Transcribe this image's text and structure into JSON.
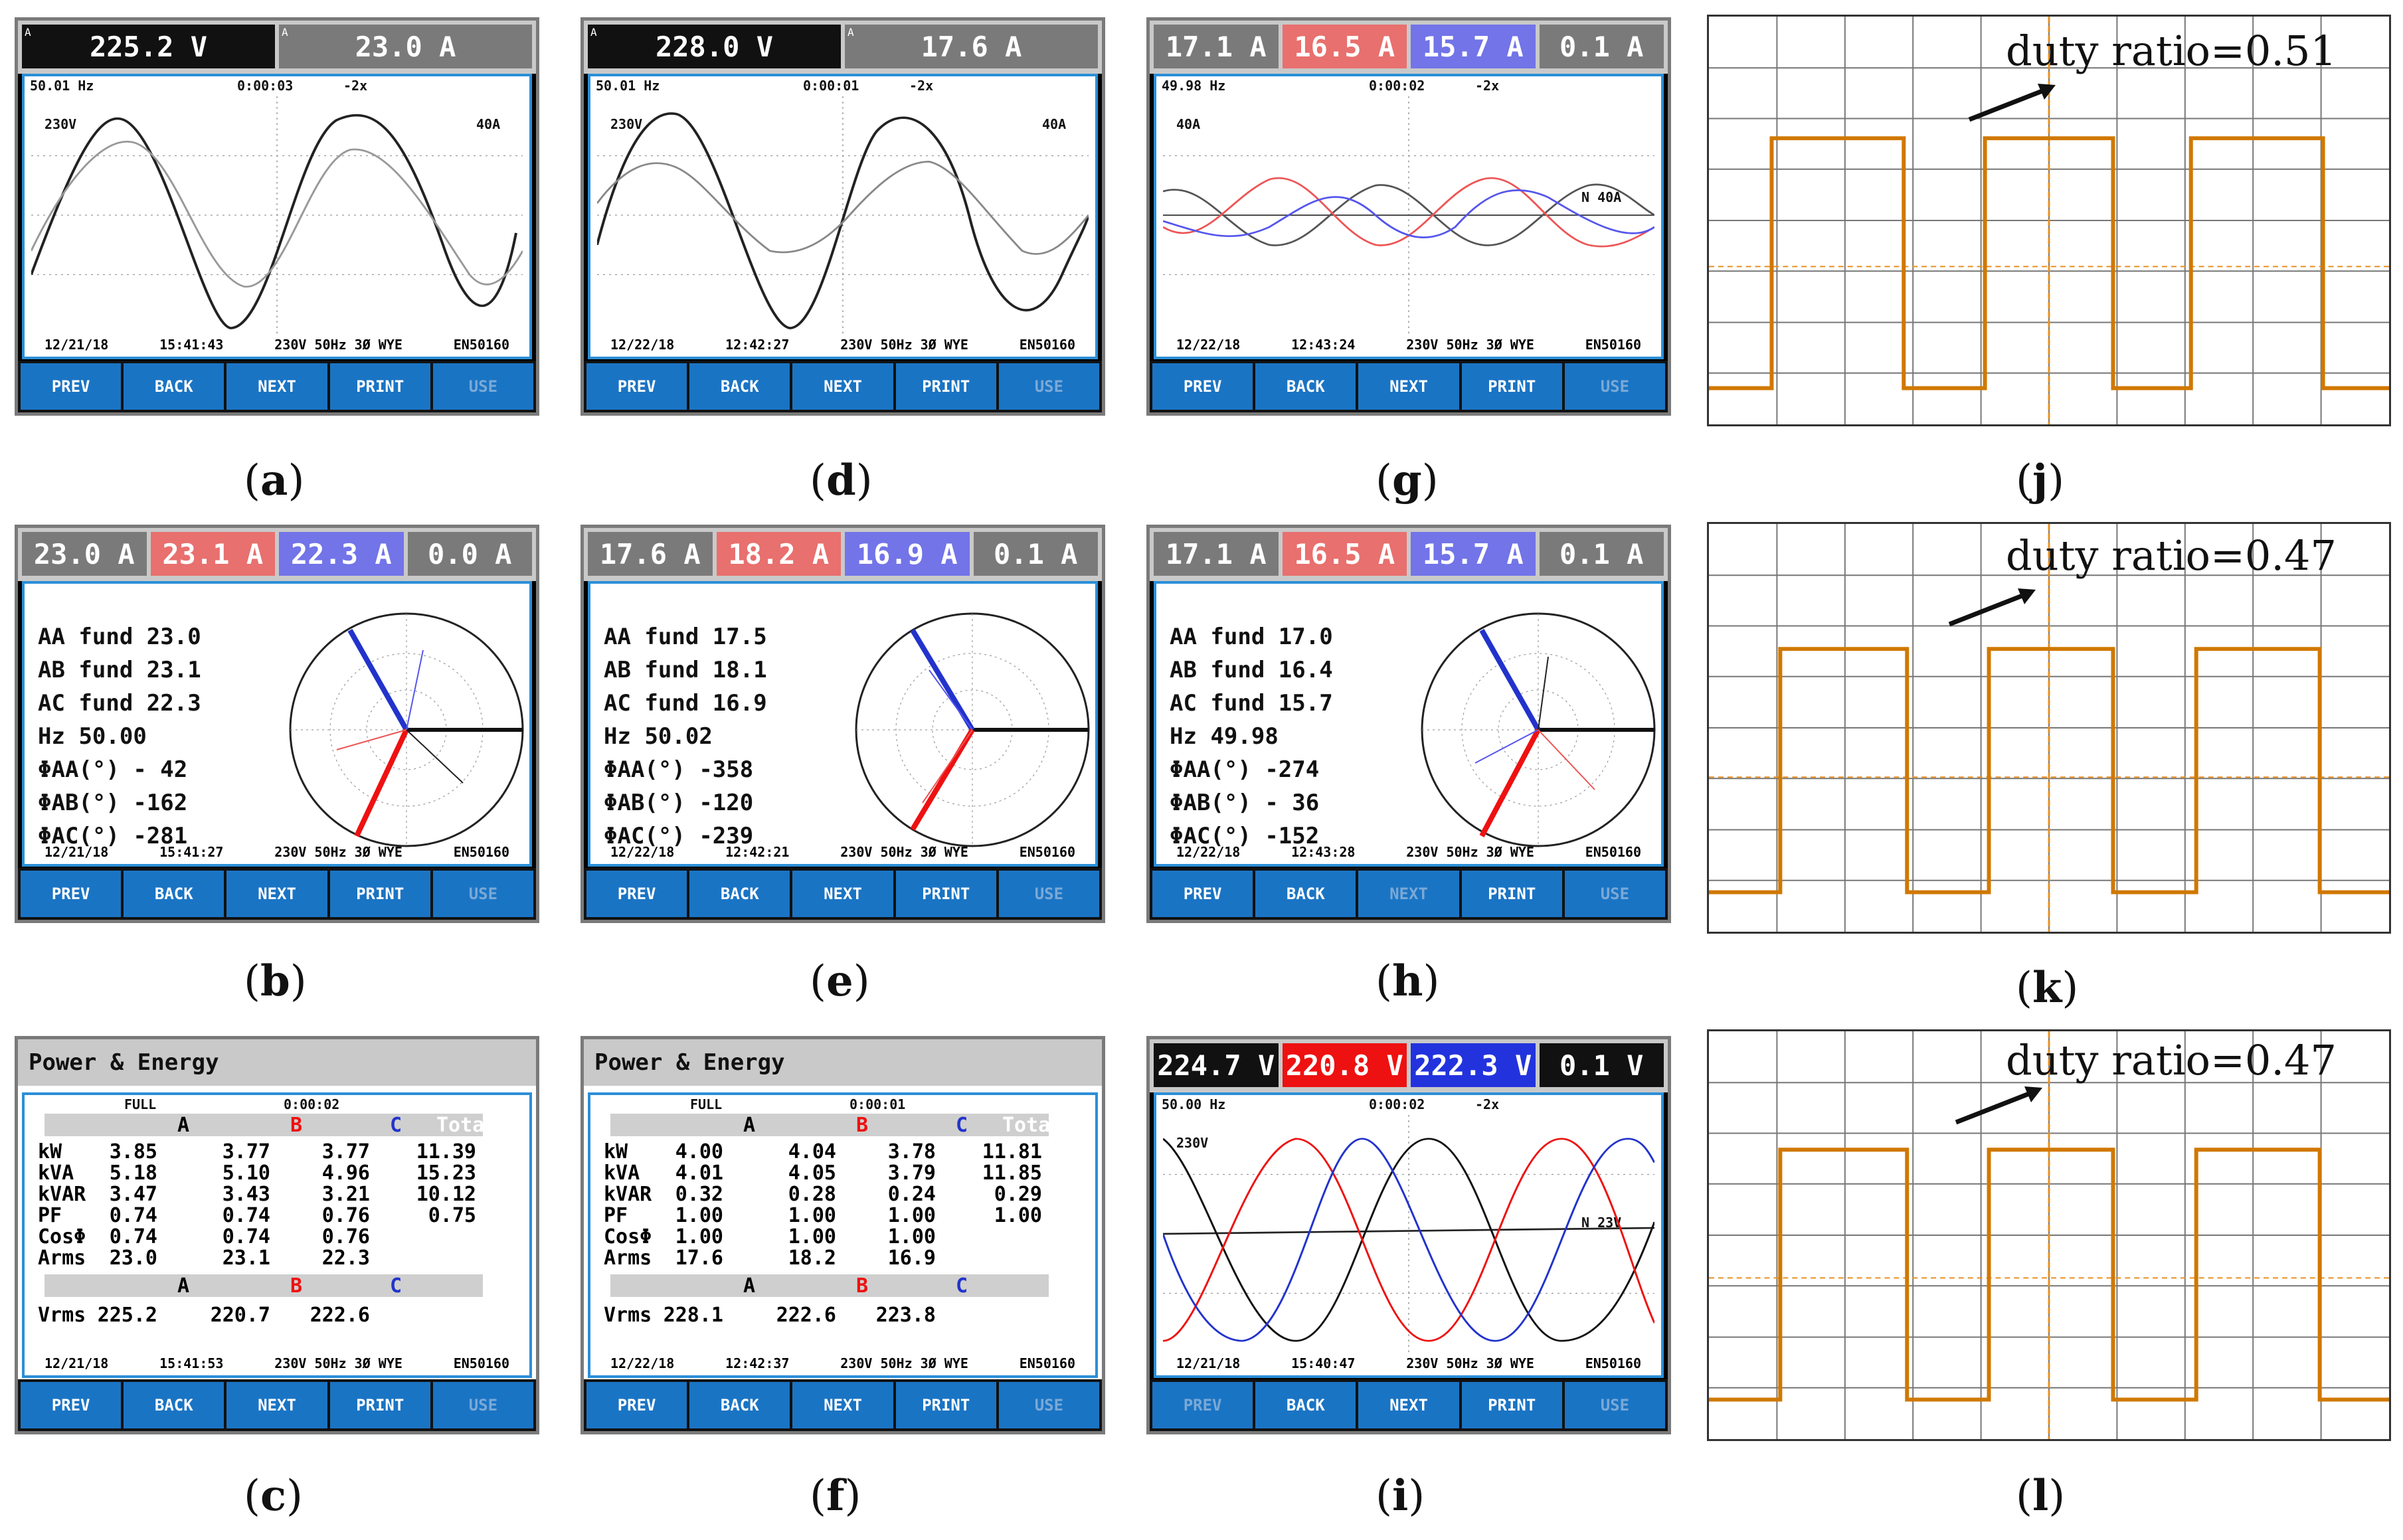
{
  "buttons": {
    "prev": "PREV",
    "back": "BACK",
    "next": "NEXT",
    "print": "PRINT",
    "use": "USE"
  },
  "common": {
    "sys": "230V  50Hz 3Ø WYE",
    "std": "EN50160"
  },
  "a": {
    "h1t": "A",
    "h1": "225.2 V",
    "h2t": "A",
    "h2": "23.0 A",
    "freq": "50.01 Hz",
    "time": "0:00:03",
    "zoom": "-2x",
    "lv": "230V",
    "li": "40A",
    "date": "12/21/18",
    "clock": "15:41:43",
    "ca": "A",
    "cv": "A",
    "caption": "a"
  },
  "d": {
    "h1t": "A",
    "h1": "228.0 V",
    "h2t": "A",
    "h2": "17.6 A",
    "freq": "50.01 Hz",
    "time": "0:00:01",
    "zoom": "-2x",
    "lv": "230V",
    "li": "40A",
    "date": "12/22/18",
    "clock": "12:42:27",
    "caption": "d"
  },
  "g": {
    "ha": "17.1 A",
    "hb": "16.5 A",
    "hc": "15.7 A",
    "hn": "0.1 A",
    "freq": "49.98 Hz",
    "time": "0:00:02",
    "zoom": "-2x",
    "li": "40A",
    "ln": "N  40A",
    "date": "12/22/18",
    "clock": "12:43:24",
    "caption": "g"
  },
  "b": {
    "ha": "23.0 A",
    "hb": "23.1 A",
    "hc": "22.3 A",
    "hn": "0.0 A",
    "rows": [
      [
        "AA fund",
        "23.0"
      ],
      [
        "AB fund",
        "23.1"
      ],
      [
        "AC fund",
        "22.3"
      ],
      [
        "Hz",
        "50.00"
      ],
      [
        "ΦAA(°)",
        "- 42"
      ],
      [
        "ΦAB(°)",
        "-162"
      ],
      [
        "ΦAC(°)",
        "-281"
      ]
    ],
    "date": "12/21/18",
    "clock": "15:41:27",
    "caption": "b"
  },
  "e": {
    "ha": "17.6 A",
    "hb": "18.2 A",
    "hc": "16.9 A",
    "hn": "0.1 A",
    "rows": [
      [
        "AA fund",
        "17.5"
      ],
      [
        "AB fund",
        "18.1"
      ],
      [
        "AC fund",
        "16.9"
      ],
      [
        "Hz",
        "50.02"
      ],
      [
        "ΦAA(°)",
        "-358"
      ],
      [
        "ΦAB(°)",
        "-120"
      ],
      [
        "ΦAC(°)",
        "-239"
      ]
    ],
    "date": "12/22/18",
    "clock": "12:42:21",
    "caption": "e"
  },
  "h": {
    "ha": "17.1 A",
    "hb": "16.5 A",
    "hc": "15.7 A",
    "hn": "0.1 A",
    "rows": [
      [
        "AA fund",
        "17.0"
      ],
      [
        "AB fund",
        "16.4"
      ],
      [
        "AC fund",
        "15.7"
      ],
      [
        "Hz",
        "49.98"
      ],
      [
        "ΦAA(°)",
        "-274"
      ],
      [
        "ΦAB(°)",
        "- 36"
      ],
      [
        "ΦAC(°)",
        "-152"
      ]
    ],
    "date": "12/22/18",
    "clock": "12:43:28",
    "caption": "h"
  },
  "c": {
    "title": "Power & Energy",
    "mode": "FULL",
    "time": "0:00:02",
    "cols": [
      "A",
      "B",
      "C",
      "Total"
    ],
    "rows": [
      [
        "kW",
        "3.85",
        "3.77",
        "3.77",
        "11.39"
      ],
      [
        "kVA",
        "5.18",
        "5.10",
        "4.96",
        "15.23"
      ],
      [
        "kVAR",
        "3.47",
        "3.43",
        "3.21",
        "10.12"
      ],
      [
        "PF",
        "0.74",
        "0.74",
        "0.76",
        "0.75"
      ],
      [
        "CosΦ",
        "0.74",
        "0.74",
        "0.76",
        ""
      ],
      [
        "Arms",
        "23.0",
        "23.1",
        "22.3",
        ""
      ]
    ],
    "vcols": [
      "A",
      "B",
      "C"
    ],
    "vrms": [
      "Vrms",
      "225.2",
      "220.7",
      "222.6"
    ],
    "date": "12/21/18",
    "clock": "15:41:53",
    "caption": "c"
  },
  "f": {
    "title": "Power & Energy",
    "mode": "FULL",
    "time": "0:00:01",
    "cols": [
      "A",
      "B",
      "C",
      "Total"
    ],
    "rows": [
      [
        "kW",
        "4.00",
        "4.04",
        "3.78",
        "11.81"
      ],
      [
        "kVA",
        "4.01",
        "4.05",
        "3.79",
        "11.85"
      ],
      [
        "kVAR",
        "0.32",
        "0.28",
        "0.24",
        "0.29"
      ],
      [
        "PF",
        "1.00",
        "1.00",
        "1.00",
        "1.00"
      ],
      [
        "CosΦ",
        "1.00",
        "1.00",
        "1.00",
        ""
      ],
      [
        "Arms",
        "17.6",
        "18.2",
        "16.9",
        ""
      ]
    ],
    "vcols": [
      "A",
      "B",
      "C"
    ],
    "vrms": [
      "Vrms",
      "228.1",
      "222.6",
      "223.8"
    ],
    "date": "12/22/18",
    "clock": "12:42:37",
    "caption": "f"
  },
  "i": {
    "ha": "224.7 V",
    "hb": "220.8 V",
    "hc": "222.3 V",
    "hn": "0.1 V",
    "freq": "50.00 Hz",
    "time": "0:00:02",
    "zoom": "-2x",
    "lv": "230V",
    "ln": "N  23V",
    "date": "12/21/18",
    "clock": "15:40:47",
    "caption": "i"
  },
  "j": {
    "duty": "duty ratio=0.51",
    "caption": "j"
  },
  "k": {
    "duty": "duty ratio=0.47",
    "caption": "k"
  },
  "l": {
    "duty": "duty ratio=0.47",
    "caption": "l"
  }
}
